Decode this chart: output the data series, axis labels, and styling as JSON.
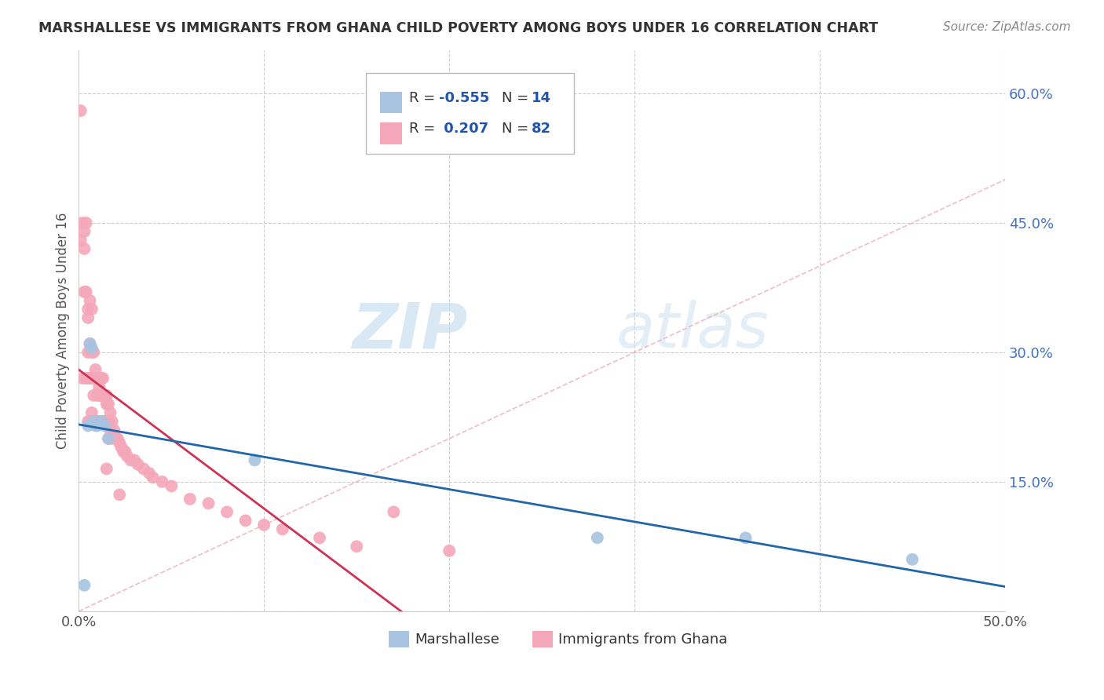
{
  "title": "MARSHALLESE VS IMMIGRANTS FROM GHANA CHILD POVERTY AMONG BOYS UNDER 16 CORRELATION CHART",
  "source": "Source: ZipAtlas.com",
  "ylabel": "Child Poverty Among Boys Under 16",
  "xlim": [
    0.0,
    0.5
  ],
  "ylim": [
    0.0,
    0.65
  ],
  "right_axis_color": "#4472c4",
  "watermark_zip": "ZIP",
  "watermark_atlas": "atlas",
  "marshallese_color": "#a8c4e0",
  "ghana_color": "#f4a7b9",
  "trendline_marshallese_color": "#2266aa",
  "trendline_ghana_color": "#cc3355",
  "diagonal_color": "#f4a7b9",
  "background_color": "#ffffff",
  "grid_color": "#cccccc",
  "marshallese_x": [
    0.003,
    0.005,
    0.006,
    0.007,
    0.008,
    0.009,
    0.01,
    0.012,
    0.014,
    0.016,
    0.095,
    0.28,
    0.36,
    0.45
  ],
  "marshallese_y": [
    0.03,
    0.215,
    0.31,
    0.305,
    0.22,
    0.215,
    0.215,
    0.22,
    0.215,
    0.2,
    0.175,
    0.085,
    0.085,
    0.06
  ],
  "ghana_x": [
    0.001,
    0.001,
    0.002,
    0.002,
    0.003,
    0.003,
    0.003,
    0.004,
    0.004,
    0.004,
    0.005,
    0.005,
    0.005,
    0.005,
    0.005,
    0.006,
    0.006,
    0.006,
    0.006,
    0.007,
    0.007,
    0.007,
    0.007,
    0.008,
    0.008,
    0.008,
    0.008,
    0.009,
    0.009,
    0.009,
    0.01,
    0.01,
    0.01,
    0.011,
    0.011,
    0.011,
    0.012,
    0.012,
    0.012,
    0.013,
    0.013,
    0.013,
    0.014,
    0.014,
    0.015,
    0.015,
    0.015,
    0.016,
    0.016,
    0.016,
    0.017,
    0.017,
    0.018,
    0.018,
    0.019,
    0.02,
    0.021,
    0.022,
    0.023,
    0.024,
    0.025,
    0.026,
    0.028,
    0.03,
    0.032,
    0.035,
    0.038,
    0.04,
    0.045,
    0.05,
    0.06,
    0.07,
    0.08,
    0.09,
    0.1,
    0.11,
    0.13,
    0.15,
    0.17,
    0.2,
    0.015,
    0.022
  ],
  "ghana_y": [
    0.58,
    0.43,
    0.45,
    0.27,
    0.44,
    0.42,
    0.37,
    0.45,
    0.37,
    0.27,
    0.35,
    0.34,
    0.3,
    0.27,
    0.22,
    0.36,
    0.31,
    0.27,
    0.22,
    0.35,
    0.3,
    0.27,
    0.23,
    0.3,
    0.27,
    0.25,
    0.22,
    0.28,
    0.27,
    0.22,
    0.27,
    0.25,
    0.22,
    0.26,
    0.25,
    0.22,
    0.27,
    0.25,
    0.22,
    0.27,
    0.25,
    0.22,
    0.25,
    0.22,
    0.25,
    0.24,
    0.22,
    0.24,
    0.22,
    0.2,
    0.23,
    0.21,
    0.22,
    0.2,
    0.21,
    0.2,
    0.2,
    0.195,
    0.19,
    0.185,
    0.185,
    0.18,
    0.175,
    0.175,
    0.17,
    0.165,
    0.16,
    0.155,
    0.15,
    0.145,
    0.13,
    0.125,
    0.115,
    0.105,
    0.1,
    0.095,
    0.085,
    0.075,
    0.115,
    0.07,
    0.165,
    0.135
  ]
}
